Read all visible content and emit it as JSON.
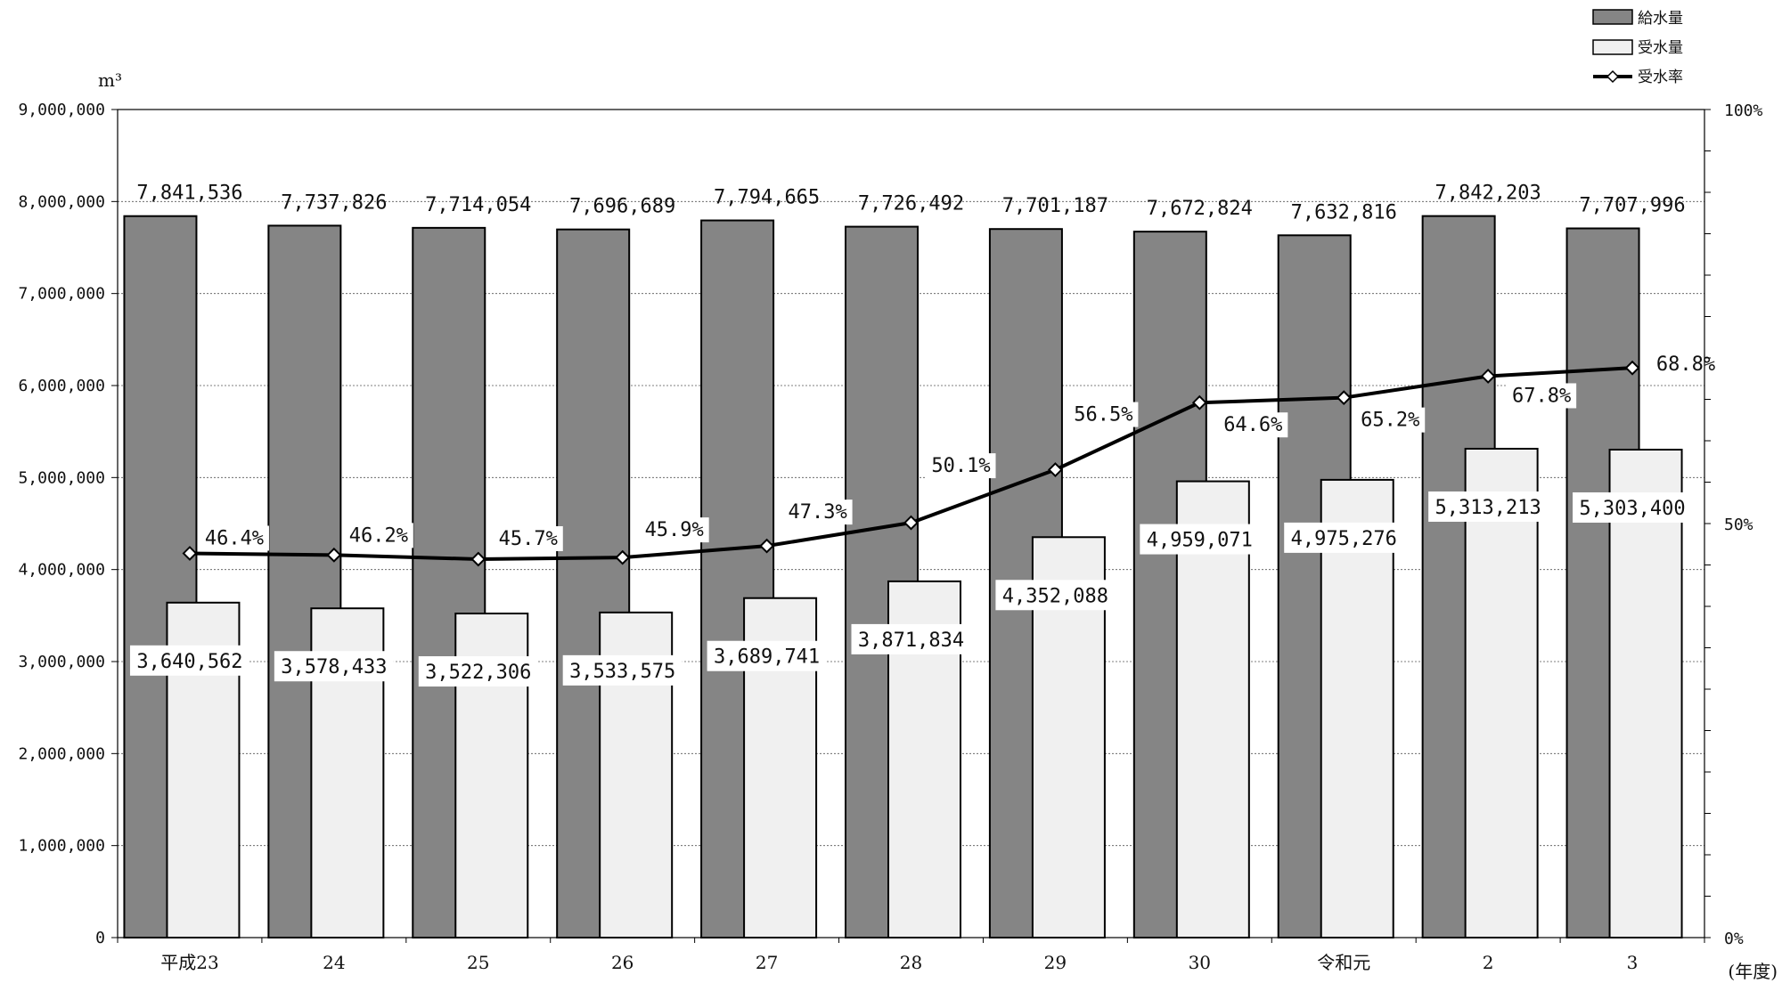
{
  "chart_data": {
    "type": "bar",
    "categories": [
      "平成23",
      "24",
      "25",
      "26",
      "27",
      "28",
      "29",
      "30",
      "令和元",
      "2",
      "3"
    ],
    "series": [
      {
        "name": "給水量",
        "type": "bar",
        "color": "#858585",
        "values": [
          7841536,
          7737826,
          7714054,
          7696689,
          7794665,
          7726492,
          7701187,
          7672824,
          7632816,
          7842203,
          7707996
        ],
        "labels": [
          "7,841,536",
          "7,737,826",
          "7,714,054",
          "7,696,689",
          "7,794,665",
          "7,726,492",
          "7,701,187",
          "7,672,824",
          "7,632,816",
          "7,842,203",
          "7,707,996"
        ]
      },
      {
        "name": "受水量",
        "type": "bar",
        "color": "#f0f0f0",
        "values": [
          3640562,
          3578433,
          3522306,
          3533575,
          3689741,
          3871834,
          4352088,
          4959071,
          4975276,
          5313213,
          5303400
        ],
        "labels": [
          "3,640,562",
          "3,578,433",
          "3,522,306",
          "3,533,575",
          "3,689,741",
          "3,871,834",
          "4,352,088",
          "4,959,071",
          "4,975,276",
          "5,313,213",
          "5,303,400"
        ]
      },
      {
        "name": "受水率",
        "type": "line",
        "axis": "right",
        "color": "#000000",
        "values": [
          46.4,
          46.2,
          45.7,
          45.9,
          47.3,
          50.1,
          56.5,
          64.6,
          65.2,
          67.8,
          68.8
        ],
        "labels": [
          "46.4%",
          "46.2%",
          "45.7%",
          "45.9%",
          "47.3%",
          "50.1%",
          "56.5%",
          "64.6%",
          "65.2%",
          "67.8%",
          "68.8%"
        ]
      }
    ],
    "y_left": {
      "unit": "m³",
      "range": [
        0,
        9000000
      ],
      "ticks": [
        "0",
        "1,000,000",
        "2,000,000",
        "3,000,000",
        "4,000,000",
        "5,000,000",
        "6,000,000",
        "7,000,000",
        "8,000,000",
        "9,000,000"
      ]
    },
    "y_right": {
      "range": [
        0,
        100
      ],
      "ticks": [
        "0%",
        "50%",
        "100%"
      ]
    },
    "xlabel": "(年度)",
    "grid": true,
    "legend": "top-right"
  }
}
